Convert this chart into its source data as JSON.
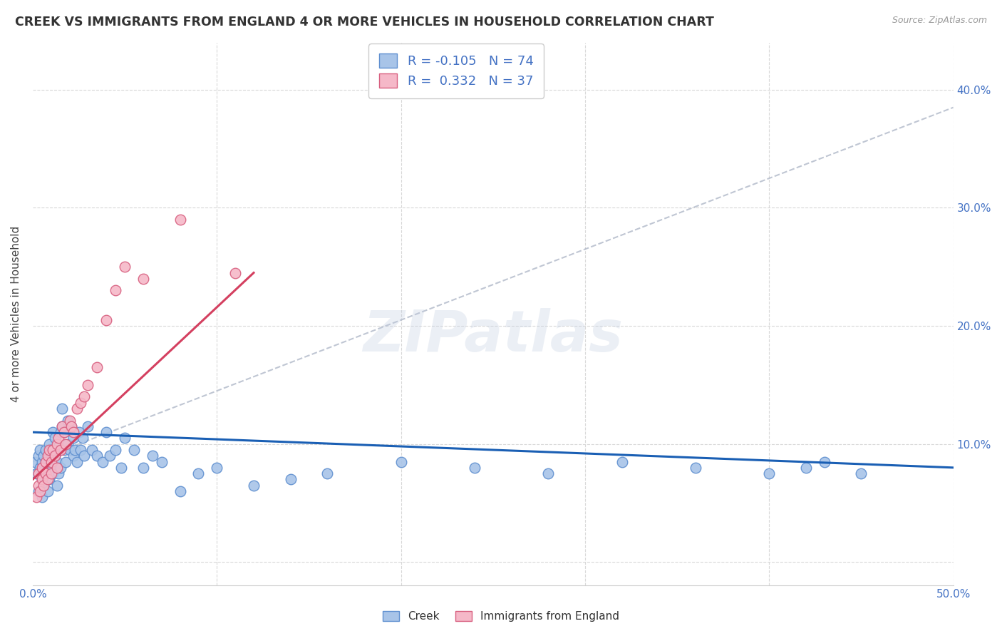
{
  "title": "CREEK VS IMMIGRANTS FROM ENGLAND 4 OR MORE VEHICLES IN HOUSEHOLD CORRELATION CHART",
  "source": "Source: ZipAtlas.com",
  "ylabel": "4 or more Vehicles in Household",
  "xlim": [
    0.0,
    0.5
  ],
  "ylim": [
    -0.02,
    0.44
  ],
  "xticks": [
    0.0,
    0.05,
    0.1,
    0.15,
    0.2,
    0.25,
    0.3,
    0.35,
    0.4,
    0.45,
    0.5
  ],
  "yticks": [
    0.0,
    0.1,
    0.2,
    0.3,
    0.4
  ],
  "creek_color": "#a8c4e8",
  "england_color": "#f5b8c8",
  "creek_edge_color": "#6090d0",
  "england_edge_color": "#d86080",
  "creek_line_color": "#1a5fb4",
  "england_line_color": "#d44060",
  "dash_line_color": "#b0b8c8",
  "label_color": "#4472c4",
  "creek_R": -0.105,
  "creek_N": 74,
  "england_R": 0.332,
  "england_N": 37,
  "watermark": "ZIPatlas",
  "grid_color": "#d8d8d8",
  "creek_x": [
    0.001,
    0.002,
    0.003,
    0.003,
    0.004,
    0.004,
    0.005,
    0.005,
    0.005,
    0.006,
    0.006,
    0.007,
    0.007,
    0.008,
    0.008,
    0.009,
    0.009,
    0.01,
    0.01,
    0.011,
    0.011,
    0.012,
    0.012,
    0.013,
    0.013,
    0.014,
    0.014,
    0.015,
    0.015,
    0.016,
    0.016,
    0.017,
    0.017,
    0.018,
    0.019,
    0.019,
    0.02,
    0.021,
    0.022,
    0.022,
    0.023,
    0.024,
    0.025,
    0.026,
    0.027,
    0.028,
    0.03,
    0.032,
    0.035,
    0.038,
    0.04,
    0.042,
    0.045,
    0.048,
    0.05,
    0.055,
    0.06,
    0.065,
    0.07,
    0.08,
    0.09,
    0.1,
    0.12,
    0.14,
    0.16,
    0.2,
    0.24,
    0.28,
    0.32,
    0.36,
    0.4,
    0.42,
    0.43,
    0.45
  ],
  "creek_y": [
    0.085,
    0.075,
    0.06,
    0.09,
    0.08,
    0.095,
    0.07,
    0.085,
    0.055,
    0.09,
    0.065,
    0.075,
    0.095,
    0.06,
    0.085,
    0.07,
    0.1,
    0.08,
    0.095,
    0.075,
    0.11,
    0.09,
    0.105,
    0.065,
    0.085,
    0.075,
    0.095,
    0.11,
    0.08,
    0.115,
    0.13,
    0.095,
    0.11,
    0.085,
    0.12,
    0.1,
    0.095,
    0.115,
    0.09,
    0.105,
    0.095,
    0.085,
    0.11,
    0.095,
    0.105,
    0.09,
    0.115,
    0.095,
    0.09,
    0.085,
    0.11,
    0.09,
    0.095,
    0.08,
    0.105,
    0.095,
    0.08,
    0.09,
    0.085,
    0.06,
    0.075,
    0.08,
    0.065,
    0.07,
    0.075,
    0.085,
    0.08,
    0.075,
    0.085,
    0.08,
    0.075,
    0.08,
    0.085,
    0.075
  ],
  "england_x": [
    0.002,
    0.003,
    0.003,
    0.004,
    0.005,
    0.005,
    0.006,
    0.007,
    0.007,
    0.008,
    0.008,
    0.009,
    0.01,
    0.01,
    0.011,
    0.012,
    0.013,
    0.013,
    0.014,
    0.015,
    0.016,
    0.017,
    0.018,
    0.02,
    0.021,
    0.022,
    0.024,
    0.026,
    0.028,
    0.03,
    0.035,
    0.04,
    0.045,
    0.05,
    0.06,
    0.08,
    0.11
  ],
  "england_y": [
    0.055,
    0.065,
    0.075,
    0.06,
    0.07,
    0.08,
    0.065,
    0.085,
    0.075,
    0.09,
    0.07,
    0.095,
    0.075,
    0.085,
    0.095,
    0.09,
    0.1,
    0.08,
    0.105,
    0.095,
    0.115,
    0.11,
    0.1,
    0.12,
    0.115,
    0.11,
    0.13,
    0.135,
    0.14,
    0.15,
    0.165,
    0.205,
    0.23,
    0.25,
    0.24,
    0.29,
    0.245
  ],
  "creek_line_x0": 0.0,
  "creek_line_y0": 0.11,
  "creek_line_x1": 0.5,
  "creek_line_y1": 0.08,
  "england_line_x0": 0.0,
  "england_line_y0": 0.07,
  "england_line_x1": 0.12,
  "england_line_y1": 0.245,
  "dash_line_x0": 0.0,
  "dash_line_y0": 0.085,
  "dash_line_x1": 0.5,
  "dash_line_y1": 0.385
}
